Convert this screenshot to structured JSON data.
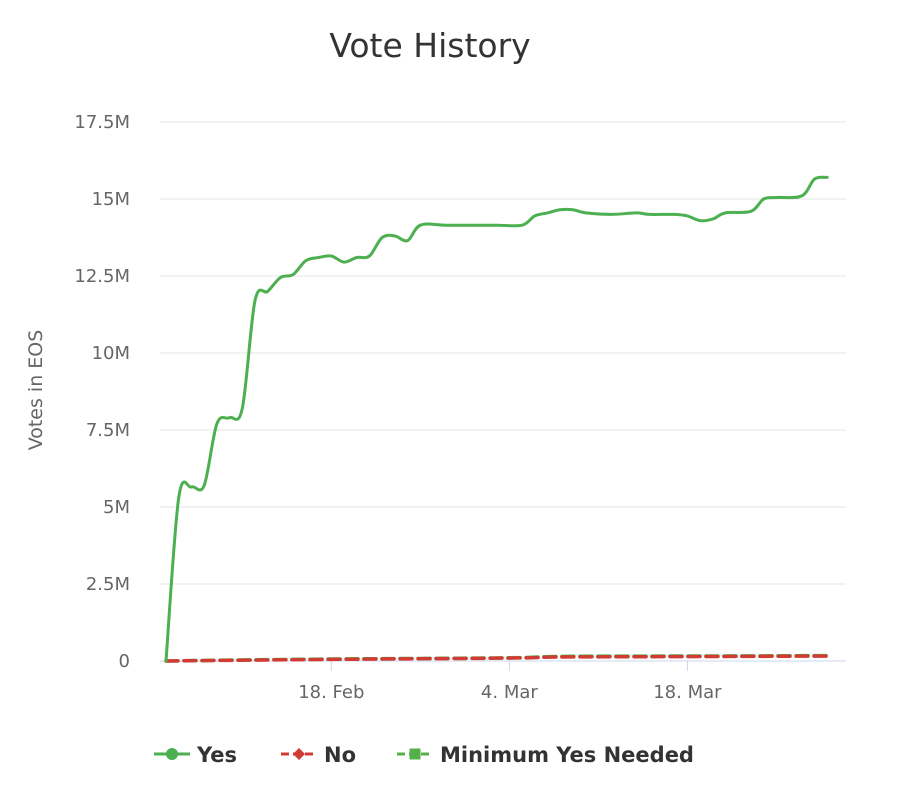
{
  "chart_data": {
    "type": "line",
    "title": "Vote History",
    "ylabel": "Votes in EOS",
    "xlabel": "",
    "ylim": [
      0,
      17500000
    ],
    "yticks": [
      {
        "value": 0,
        "label": "0"
      },
      {
        "value": 2500000,
        "label": "2.5M"
      },
      {
        "value": 5000000,
        "label": "5M"
      },
      {
        "value": 7500000,
        "label": "7.5M"
      },
      {
        "value": 10000000,
        "label": "10M"
      },
      {
        "value": 12500000,
        "label": "12.5M"
      },
      {
        "value": 15000000,
        "label": "15M"
      },
      {
        "value": 17500000,
        "label": "17.5M"
      }
    ],
    "xlim": [
      "2019-02-05",
      "2019-03-30"
    ],
    "xticks": [
      {
        "date": "2019-02-18",
        "label": "18. Feb"
      },
      {
        "date": "2019-03-04",
        "label": "4. Mar"
      },
      {
        "date": "2019-03-18",
        "label": "18. Mar"
      }
    ],
    "grid": true,
    "legend_position": "bottom",
    "series": [
      {
        "name": "Yes",
        "color": "#4caf50",
        "marker": "circle",
        "dash": "solid",
        "points": [
          [
            "2019-02-05",
            0
          ],
          [
            "2019-02-06",
            5300000
          ],
          [
            "2019-02-07",
            5650000
          ],
          [
            "2019-02-08",
            5700000
          ],
          [
            "2019-02-09",
            7700000
          ],
          [
            "2019-02-10",
            7900000
          ],
          [
            "2019-02-11",
            8200000
          ],
          [
            "2019-02-12",
            11700000
          ],
          [
            "2019-02-13",
            12000000
          ],
          [
            "2019-02-14",
            12450000
          ],
          [
            "2019-02-15",
            12550000
          ],
          [
            "2019-02-16",
            13000000
          ],
          [
            "2019-02-17",
            13100000
          ],
          [
            "2019-02-18",
            13150000
          ],
          [
            "2019-02-19",
            12950000
          ],
          [
            "2019-02-20",
            13100000
          ],
          [
            "2019-02-21",
            13150000
          ],
          [
            "2019-02-22",
            13750000
          ],
          [
            "2019-02-23",
            13800000
          ],
          [
            "2019-02-24",
            13650000
          ],
          [
            "2019-02-25",
            14150000
          ],
          [
            "2019-02-27",
            14150000
          ],
          [
            "2019-03-01",
            14150000
          ],
          [
            "2019-03-03",
            14150000
          ],
          [
            "2019-03-05",
            14150000
          ],
          [
            "2019-03-06",
            14450000
          ],
          [
            "2019-03-07",
            14550000
          ],
          [
            "2019-03-08",
            14650000
          ],
          [
            "2019-03-09",
            14650000
          ],
          [
            "2019-03-10",
            14550000
          ],
          [
            "2019-03-12",
            14500000
          ],
          [
            "2019-03-14",
            14550000
          ],
          [
            "2019-03-15",
            14500000
          ],
          [
            "2019-03-17",
            14500000
          ],
          [
            "2019-03-18",
            14450000
          ],
          [
            "2019-03-19",
            14300000
          ],
          [
            "2019-03-20",
            14350000
          ],
          [
            "2019-03-21",
            14550000
          ],
          [
            "2019-03-23",
            14600000
          ],
          [
            "2019-03-24",
            15000000
          ],
          [
            "2019-03-25",
            15050000
          ],
          [
            "2019-03-27",
            15100000
          ],
          [
            "2019-03-28",
            15650000
          ],
          [
            "2019-03-29",
            15700000
          ]
        ]
      },
      {
        "name": "No",
        "color": "#d03b34",
        "marker": "diamond",
        "dash": "dashed",
        "points": [
          [
            "2019-02-05",
            0
          ],
          [
            "2019-02-12",
            30000
          ],
          [
            "2019-02-20",
            60000
          ],
          [
            "2019-02-28",
            80000
          ],
          [
            "2019-03-05",
            100000
          ],
          [
            "2019-03-08",
            130000
          ],
          [
            "2019-03-15",
            140000
          ],
          [
            "2019-03-22",
            150000
          ],
          [
            "2019-03-29",
            160000
          ]
        ]
      },
      {
        "name": "Minimum Yes Needed",
        "color": "#56b04a",
        "marker": "square",
        "dash": "dashed",
        "points": [
          [
            "2019-02-05",
            0
          ],
          [
            "2019-02-12",
            40000
          ],
          [
            "2019-02-20",
            70000
          ],
          [
            "2019-02-28",
            90000
          ],
          [
            "2019-03-05",
            110000
          ],
          [
            "2019-03-08",
            150000
          ],
          [
            "2019-03-15",
            160000
          ],
          [
            "2019-03-22",
            165000
          ],
          [
            "2019-03-29",
            175000
          ]
        ]
      }
    ]
  }
}
